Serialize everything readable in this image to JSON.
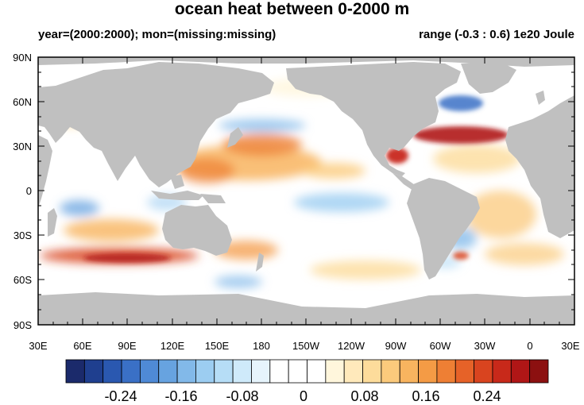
{
  "header": {
    "title": "ocean heat between 0-2000 m",
    "subtitle_left": "year=(2000:2000); mon=(missing:missing)",
    "subtitle_right": "range (-0.3 : 0.6) 1e20 Joule"
  },
  "map": {
    "lat_ticks": [
      "90N",
      "60N",
      "30N",
      "0",
      "30S",
      "60S",
      "90S"
    ],
    "lon_ticks": [
      "30E",
      "60E",
      "90E",
      "120E",
      "150E",
      "180",
      "150W",
      "120W",
      "90W",
      "60W",
      "30W",
      "0",
      "30E"
    ],
    "colors": {
      "land": "#c0c0c0",
      "ocean_neutral": "#ffffff"
    }
  },
  "colorbar": {
    "labels": [
      "-0.24",
      "-0.16",
      "-0.08",
      "0",
      "0.08",
      "0.16",
      "0.24"
    ],
    "colors": [
      "#1b2a6b",
      "#1f3f8f",
      "#2a58b0",
      "#3a70c6",
      "#4f8ad6",
      "#67a3e0",
      "#82b9e9",
      "#9ccdf1",
      "#b6ddf6",
      "#cfeafa",
      "#e6f4fc",
      "#ffffff",
      "#ffffff",
      "#ffffff",
      "#fff6dc",
      "#ffe9bb",
      "#fddc9b",
      "#fbca7c",
      "#f8b45f",
      "#f49b45",
      "#ee7f34",
      "#e66228",
      "#d9441f",
      "#c8291a",
      "#b01616",
      "#8c1010"
    ]
  }
}
